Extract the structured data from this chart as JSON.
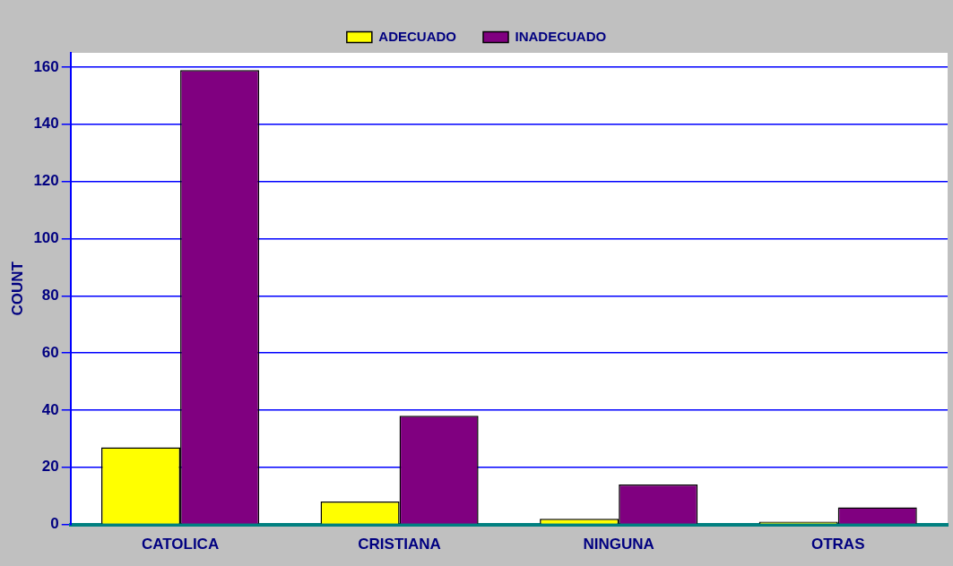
{
  "chart_data": {
    "type": "bar",
    "ylabel": "COUNT",
    "categories": [
      "CATOLICA",
      "CRISTIANA",
      "NINGUNA",
      "OTRAS"
    ],
    "series": [
      {
        "name": "ADECUADO",
        "color": "#ffff00",
        "values": [
          27,
          8,
          2,
          1
        ]
      },
      {
        "name": "INADECUADO",
        "color": "#800080",
        "values": [
          159,
          38,
          14,
          6
        ]
      }
    ],
    "ylim": [
      0,
      165
    ],
    "yticks": [
      0,
      20,
      40,
      60,
      80,
      100,
      120,
      140,
      160
    ],
    "grid": "y",
    "legend": "top"
  }
}
